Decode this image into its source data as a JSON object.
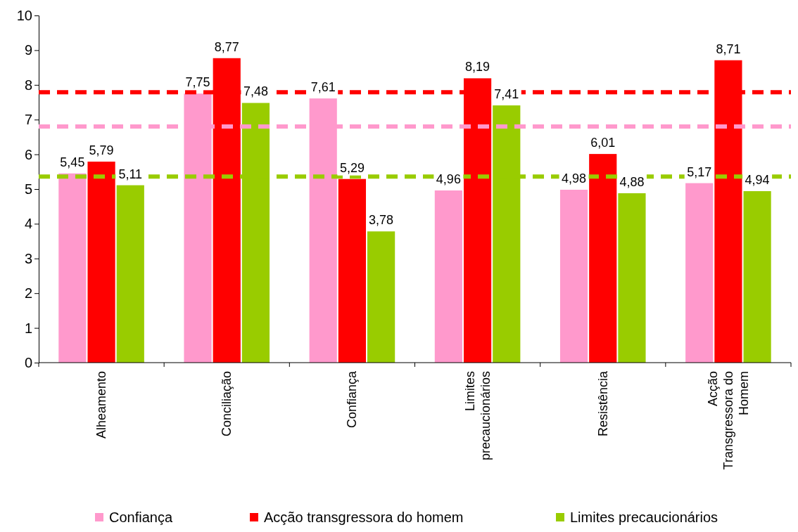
{
  "chart_data": {
    "type": "bar",
    "categories": [
      "Alheamento",
      "Conciliação",
      "Confiança",
      "Limites precaucionários",
      "Resistência",
      "Acção Transgressora do Homem"
    ],
    "series": [
      {
        "name": "Confiança",
        "color": "#ff99cc",
        "values": [
          5.45,
          7.75,
          7.61,
          4.96,
          4.98,
          5.17
        ],
        "value_labels": [
          "5,45",
          "7,75",
          "7,61",
          "4,96",
          "4,98",
          "5,17"
        ]
      },
      {
        "name": "Acção transgressora do homem",
        "color": "#ff0000",
        "values": [
          5.79,
          8.77,
          5.29,
          8.19,
          6.01,
          8.71
        ],
        "value_labels": [
          "5,79",
          "8,77",
          "5,29",
          "8,19",
          "6,01",
          "8,71"
        ]
      },
      {
        "name": "Limites precaucionários",
        "color": "#99cc00",
        "values": [
          5.11,
          7.48,
          3.78,
          7.41,
          4.88,
          4.94
        ],
        "value_labels": [
          "5,11",
          "7,48",
          "3,78",
          "7,41",
          "4,88",
          "4,94"
        ]
      }
    ],
    "ylim": [
      0,
      10
    ],
    "yticks": [
      0,
      1,
      2,
      3,
      4,
      5,
      6,
      7,
      8,
      9,
      10
    ],
    "ref_lines": [
      {
        "axis": "y",
        "value": 7.79,
        "color": "#ff0000",
        "line_style": "dashed"
      },
      {
        "axis": "y",
        "value": 6.8,
        "color": "#ff99cc",
        "line_style": "dashed"
      },
      {
        "axis": "y",
        "value": 5.36,
        "color": "#99cc00",
        "line_style": "dashed"
      }
    ],
    "grid": false,
    "legend": "bottom"
  }
}
